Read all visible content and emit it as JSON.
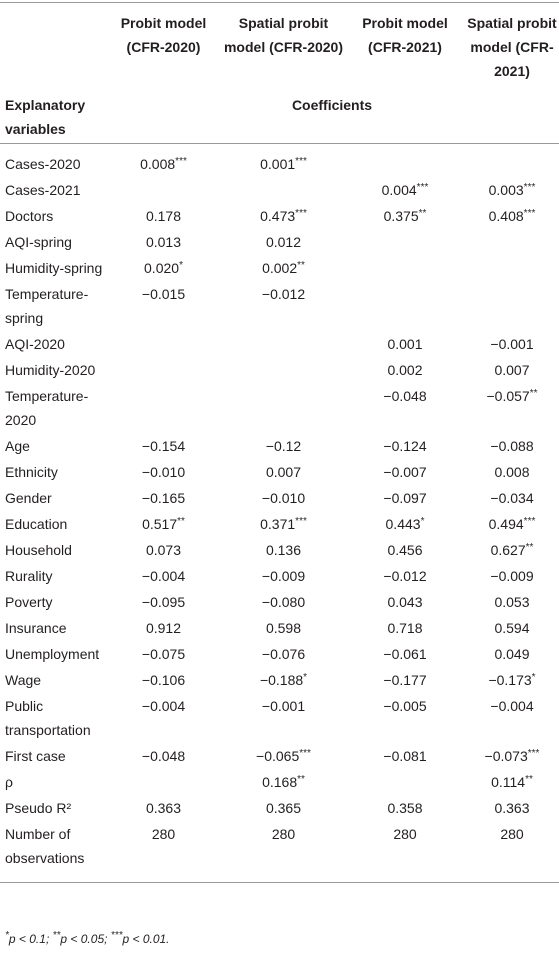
{
  "table": {
    "columns": [
      "Probit model (CFR-2020)",
      "Spatial probit model (CFR-2020)",
      "Probit model (CFR-2021)",
      "Spatial probit model (CFR-2021)"
    ],
    "row_header": "Explanatory variables",
    "subheader": "Coefficients",
    "rows": [
      [
        "Cases-2020",
        "0.008***",
        "0.001***",
        "",
        ""
      ],
      [
        "Cases-2021",
        "",
        "",
        "0.004***",
        "0.003***"
      ],
      [
        "Doctors",
        "0.178",
        "0.473***",
        "0.375**",
        "0.408***"
      ],
      [
        "AQI-spring",
        "0.013",
        "0.012",
        "",
        ""
      ],
      [
        "Humidity-spring",
        "0.020*",
        "0.002**",
        "",
        ""
      ],
      [
        "Temperature-spring",
        "−0.015",
        "−0.012",
        "",
        ""
      ],
      [
        "AQI-2020",
        "",
        "",
        "0.001",
        "−0.001"
      ],
      [
        "Humidity-2020",
        "",
        "",
        "0.002",
        "0.007"
      ],
      [
        "Temperature-2020",
        "",
        "",
        "−0.048",
        "−0.057**"
      ],
      [
        "Age",
        "−0.154",
        "−0.12",
        "−0.124",
        "−0.088"
      ],
      [
        "Ethnicity",
        "−0.010",
        "0.007",
        "−0.007",
        "0.008"
      ],
      [
        "Gender",
        "−0.165",
        "−0.010",
        "−0.097",
        "−0.034"
      ],
      [
        "Education",
        "0.517**",
        "0.371***",
        "0.443*",
        "0.494***"
      ],
      [
        "Household",
        "0.073",
        "0.136",
        "0.456",
        "0.627**"
      ],
      [
        "Rurality",
        "−0.004",
        "−0.009",
        "−0.012",
        "−0.009"
      ],
      [
        "Poverty",
        "−0.095",
        "−0.080",
        "0.043",
        "0.053"
      ],
      [
        "Insurance",
        "0.912",
        "0.598",
        "0.718",
        "0.594"
      ],
      [
        "Unemployment",
        "−0.075",
        "−0.076",
        "−0.061",
        "0.049"
      ],
      [
        "Wage",
        "−0.106",
        "−0.188*",
        "−0.177",
        "−0.173*"
      ],
      [
        "Public transportation",
        "−0.004",
        "−0.001",
        "−0.005",
        "−0.004"
      ],
      [
        "First case",
        "−0.048",
        "−0.065***",
        "−0.081",
        "−0.073***"
      ],
      [
        "ρ",
        "",
        "0.168**",
        "",
        "0.114**"
      ],
      [
        "Pseudo R²",
        "0.363",
        "0.365",
        "0.358",
        "0.363"
      ],
      [
        "Number of observations",
        "280",
        "280",
        "280",
        "280"
      ]
    ],
    "footnote": "*p < 0.1; **p < 0.05; ***p < 0.01."
  }
}
